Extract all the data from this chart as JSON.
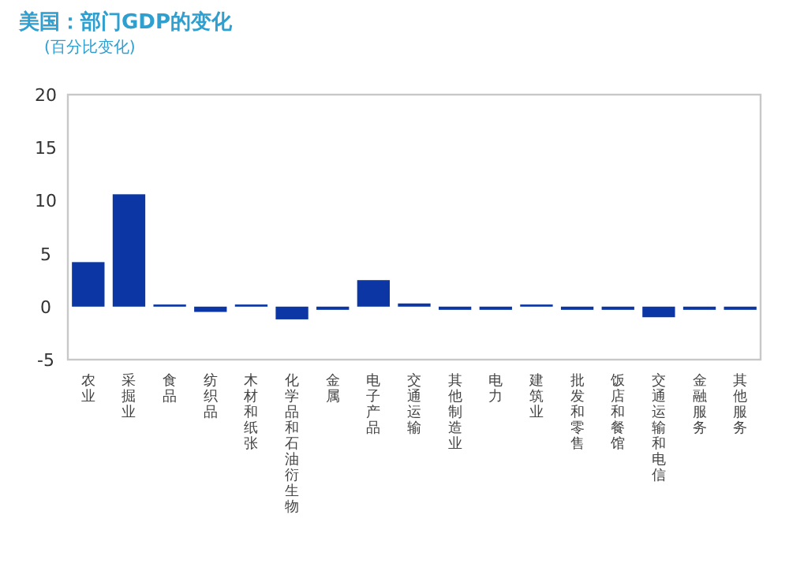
{
  "chart_data": {
    "type": "bar",
    "title": "美国：部门GDP的变化",
    "subtitle": "(百分比变化)",
    "categories": [
      "农业",
      "采掘业",
      "食品",
      "纺织品",
      "木材和纸张",
      "化学品和石油衍生物",
      "金属",
      "电子产品",
      "交通运输",
      "其他制造业",
      "电力",
      "建筑业",
      "批发和零售",
      "饭店和餐馆",
      "交通运输和电信",
      "金融服务",
      "其他服务"
    ],
    "values": [
      4.2,
      10.6,
      0.2,
      -0.5,
      0.2,
      -1.2,
      -0.3,
      2.5,
      0.3,
      -0.3,
      -0.3,
      0.2,
      -0.3,
      -0.3,
      -1.0,
      -0.3,
      -0.3
    ],
    "color": "#0b36a3",
    "ylim": [
      -5,
      20
    ],
    "yticks": [
      -5,
      0,
      5,
      10,
      15,
      20
    ],
    "grid": false
  }
}
